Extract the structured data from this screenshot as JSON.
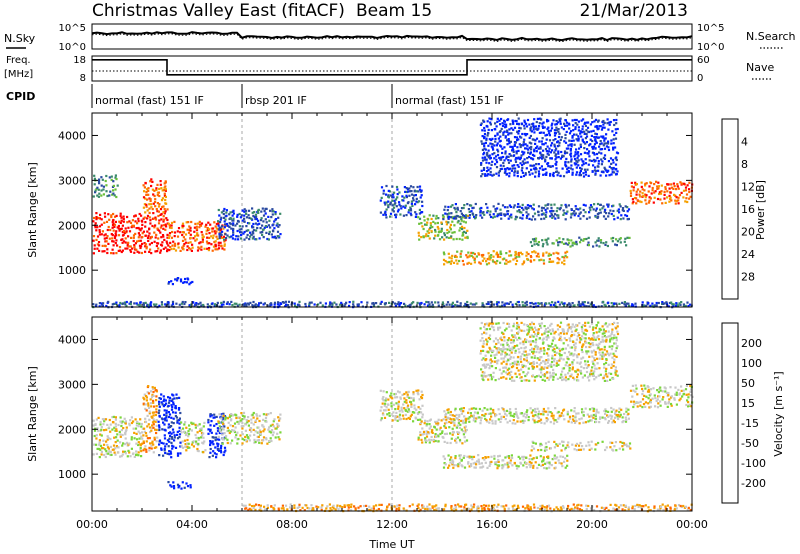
{
  "header": {
    "title": "Christmas Valley East (fitACF)",
    "beam": "Beam 15",
    "date": "21/Mar/2013"
  },
  "status_panel": {
    "nsky_label": "N.Sky",
    "nsearch_label": "N.Search",
    "freq_label_1": "Freq.",
    "freq_label_2": "[MHz]",
    "nave_label": "Nave",
    "cpid_label": "CPID",
    "noise_ticks_left": [
      "10^5",
      "10^0"
    ],
    "noise_ticks_right": [
      "10^5",
      "10^0"
    ],
    "freq_ticks_left": [
      "18",
      "8"
    ],
    "nave_ticks_right": [
      "60",
      "0"
    ],
    "cpid_segments": [
      {
        "label": "normal (fast) 151 IF",
        "start_h": 0,
        "end_h": 6
      },
      {
        "label": "rbsp 201 IF",
        "start_h": 6,
        "end_h": 12
      },
      {
        "label": "normal (fast) 151 IF",
        "start_h": 12,
        "end_h": 24
      }
    ],
    "freq_step": [
      {
        "h": 0,
        "mhz": 16.5
      },
      {
        "h": 3,
        "mhz": 16.5
      },
      {
        "h": 3,
        "mhz": 10.5
      },
      {
        "h": 15,
        "mhz": 10.5
      },
      {
        "h": 15,
        "mhz": 16.5
      },
      {
        "h": 24,
        "mhz": 16.5
      }
    ]
  },
  "chart_data": [
    {
      "type": "heatmap",
      "panel": "power",
      "ylabel": "Slant Range [km]",
      "xlabel": "Time UT",
      "xlim": [
        0,
        24
      ],
      "ylim": [
        180,
        4500
      ],
      "y_ticks": [
        1000,
        2000,
        3000,
        4000
      ],
      "x_ticks": [
        "00:00",
        "04:00",
        "08:00",
        "12:00",
        "16:00",
        "20:00",
        "00:00"
      ],
      "colorbar_label": "Power [dB]",
      "colorbar_ticks": [
        "4",
        "8",
        "12",
        "16",
        "20",
        "24",
        "28"
      ],
      "colors": [
        "#0020ff",
        "#2a4aa0",
        "#3a8a6a",
        "#6abf3a",
        "#f5a000",
        "#ff6600",
        "#ff0000"
      ],
      "echo_bands": [
        {
          "t0": 0.0,
          "t1": 3.0,
          "r0": 1400,
          "r1": 2300,
          "level": 6
        },
        {
          "t0": 0.0,
          "t1": 1.0,
          "r0": 2650,
          "r1": 3150,
          "level": 2
        },
        {
          "t0": 2.0,
          "t1": 3.0,
          "r0": 2300,
          "r1": 3050,
          "level": 5
        },
        {
          "t0": 3.0,
          "t1": 5.3,
          "r0": 1450,
          "r1": 2100,
          "level": 5
        },
        {
          "t0": 5.0,
          "t1": 7.5,
          "r0": 1700,
          "r1": 2400,
          "level": 1
        },
        {
          "t0": 3.0,
          "t1": 4.0,
          "r0": 700,
          "r1": 850,
          "level": 0
        },
        {
          "t0": 11.5,
          "t1": 13.2,
          "r0": 2200,
          "r1": 2900,
          "level": 1
        },
        {
          "t0": 13.0,
          "t1": 15.0,
          "r0": 1700,
          "r1": 2250,
          "level": 3
        },
        {
          "t0": 14.0,
          "t1": 19.0,
          "r0": 1150,
          "r1": 1450,
          "level": 4
        },
        {
          "t0": 14.0,
          "t1": 21.5,
          "r0": 2150,
          "r1": 2500,
          "level": 1
        },
        {
          "t0": 17.5,
          "t1": 21.5,
          "r0": 1550,
          "r1": 1750,
          "level": 2
        },
        {
          "t0": 15.5,
          "t1": 21.0,
          "r0": 3100,
          "r1": 4400,
          "level": 0
        },
        {
          "t0": 21.5,
          "t1": 24.0,
          "r0": 2500,
          "r1": 3000,
          "level": 5
        },
        {
          "t0": 0.0,
          "t1": 24.0,
          "r0": 200,
          "r1": 320,
          "level": 1
        }
      ]
    },
    {
      "type": "heatmap",
      "panel": "velocity",
      "ylabel": "Slant Range [km]",
      "xlabel": "Time UT",
      "xlim": [
        0,
        24
      ],
      "ylim": [
        180,
        4500
      ],
      "y_ticks": [
        1000,
        2000,
        3000,
        4000
      ],
      "x_ticks": [
        "00:00",
        "04:00",
        "08:00",
        "12:00",
        "16:00",
        "20:00",
        "00:00"
      ],
      "colorbar_label": "Velocity [m s⁻¹]",
      "colorbar_ticks": [
        "200",
        "100",
        "50",
        "15",
        "-15",
        "-50",
        "-100",
        "-200"
      ],
      "colors": [
        "#0020ff",
        "#2a4aa0",
        "#3a8a6a",
        "#7ad63a",
        "#c8c8c8",
        "#f5a000",
        "#ff6600",
        "#ff0000"
      ],
      "echo_bands": [
        {
          "t0": 0.0,
          "t1": 2.0,
          "r0": 1400,
          "r1": 2300,
          "level": 4
        },
        {
          "t0": 2.0,
          "t1": 2.6,
          "r0": 1500,
          "r1": 3000,
          "level": 5
        },
        {
          "t0": 2.6,
          "t1": 3.5,
          "r0": 1400,
          "r1": 2800,
          "level": 0
        },
        {
          "t0": 3.5,
          "t1": 4.5,
          "r0": 1500,
          "r1": 2200,
          "level": 4
        },
        {
          "t0": 4.6,
          "t1": 5.3,
          "r0": 1400,
          "r1": 2400,
          "level": 0
        },
        {
          "t0": 3.0,
          "t1": 4.0,
          "r0": 700,
          "r1": 850,
          "level": 0
        },
        {
          "t0": 5.0,
          "t1": 7.5,
          "r0": 1700,
          "r1": 2400,
          "level": 4
        },
        {
          "t0": 11.5,
          "t1": 13.2,
          "r0": 2200,
          "r1": 2900,
          "level": 4
        },
        {
          "t0": 13.0,
          "t1": 15.0,
          "r0": 1700,
          "r1": 2250,
          "level": 4
        },
        {
          "t0": 14.0,
          "t1": 19.0,
          "r0": 1150,
          "r1": 1450,
          "level": 4
        },
        {
          "t0": 14.0,
          "t1": 21.5,
          "r0": 2150,
          "r1": 2500,
          "level": 4
        },
        {
          "t0": 17.5,
          "t1": 21.5,
          "r0": 1550,
          "r1": 1750,
          "level": 4
        },
        {
          "t0": 15.5,
          "t1": 21.0,
          "r0": 3100,
          "r1": 4400,
          "level": 4
        },
        {
          "t0": 21.5,
          "t1": 24.0,
          "r0": 2500,
          "r1": 3000,
          "level": 4
        },
        {
          "t0": 6.0,
          "t1": 24.0,
          "r0": 200,
          "r1": 350,
          "level": 5
        }
      ]
    }
  ]
}
